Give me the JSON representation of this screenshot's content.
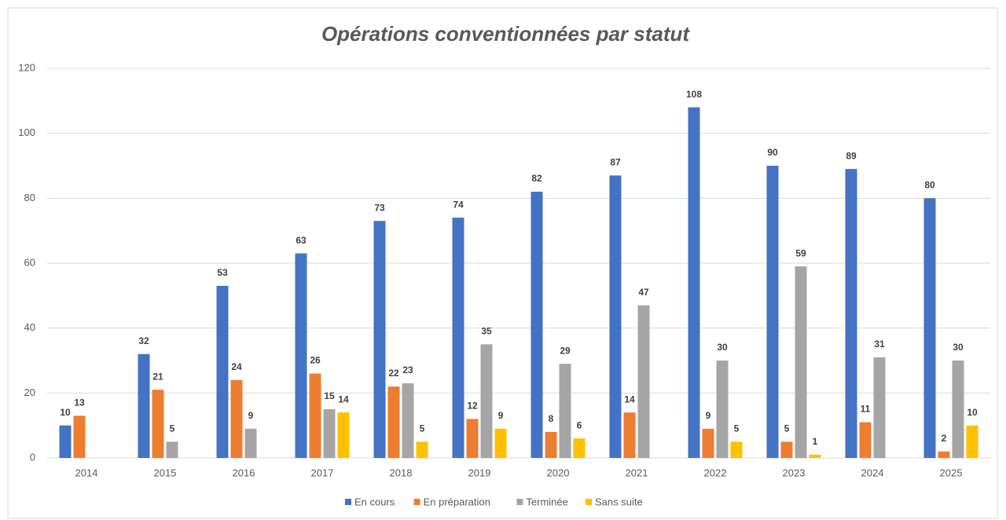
{
  "chart_data": {
    "type": "bar",
    "title": "Opérations conventionnées par statut",
    "categories": [
      "2014",
      "2015",
      "2016",
      "2017",
      "2018",
      "2019",
      "2020",
      "2021",
      "2022",
      "2023",
      "2024",
      "2025"
    ],
    "series": [
      {
        "name": "En cours",
        "color": "#4472c4",
        "values": [
          10,
          32,
          53,
          63,
          73,
          74,
          82,
          87,
          108,
          90,
          89,
          80
        ]
      },
      {
        "name": "En préparation",
        "color": "#ed7d31",
        "values": [
          13,
          21,
          24,
          26,
          22,
          12,
          8,
          14,
          9,
          5,
          11,
          2
        ]
      },
      {
        "name": "Terminée",
        "color": "#a5a5a5",
        "values": [
          null,
          5,
          9,
          15,
          23,
          35,
          29,
          47,
          30,
          59,
          31,
          30
        ]
      },
      {
        "name": "Sans suite",
        "color": "#ffc000",
        "values": [
          null,
          null,
          null,
          14,
          5,
          9,
          6,
          null,
          5,
          1,
          null,
          10
        ]
      }
    ],
    "ylim": [
      0,
      120
    ],
    "yticks": [
      0,
      20,
      40,
      60,
      80,
      100,
      120
    ],
    "grid": true,
    "legend": "bottom"
  }
}
